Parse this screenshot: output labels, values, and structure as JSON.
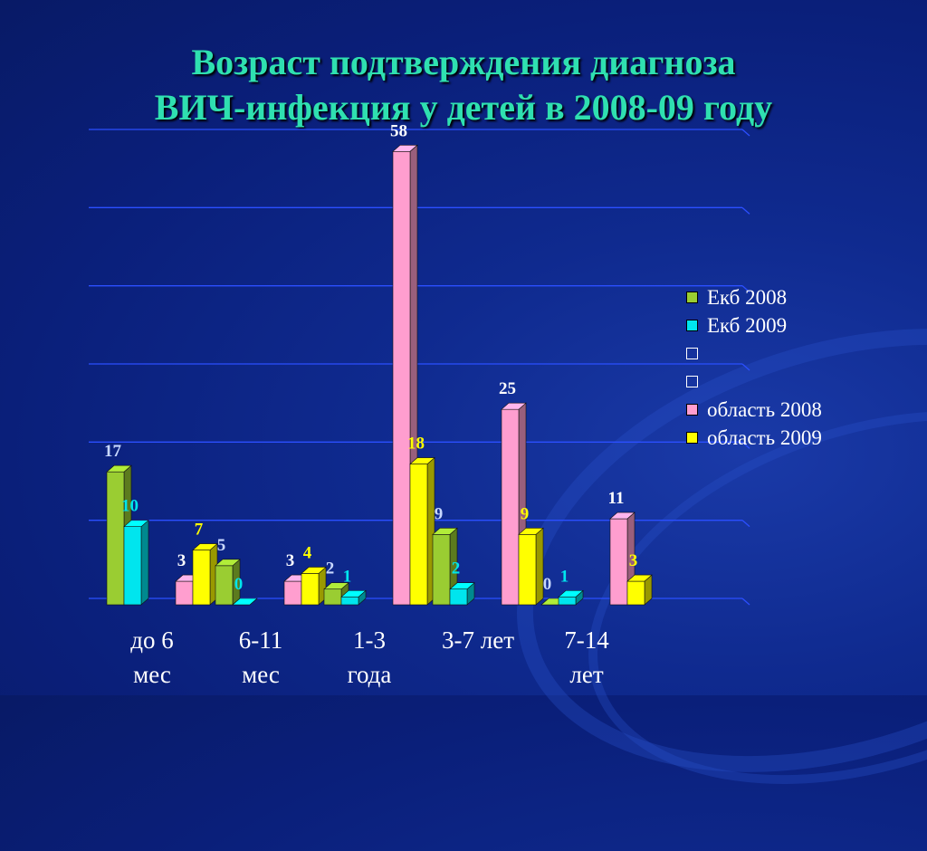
{
  "title": {
    "line1": "Возраст подтверждения диагноза",
    "line2": "ВИЧ-инфекция у детей в 2008-09 году"
  },
  "chart_data": {
    "type": "bar",
    "categories": [
      [
        "до 6",
        "мес"
      ],
      [
        "6-11",
        "мес"
      ],
      [
        "1-3",
        "года"
      ],
      [
        "3-7 лет"
      ],
      [
        "7-14",
        "лет"
      ]
    ],
    "series": [
      {
        "name": "Екб 2008",
        "values": [
          17,
          5,
          2,
          9,
          0
        ],
        "color": "#9acd32",
        "label_color": "#c8d8ff"
      },
      {
        "name": "Екб 2009",
        "values": [
          10,
          0,
          1,
          2,
          1
        ],
        "color": "#00e5ee",
        "label_color": "#00e5ee"
      },
      {
        "name": "",
        "values": [
          null,
          null,
          null,
          null,
          null
        ],
        "color": "#0a1f7a",
        "label_color": "#ffffff"
      },
      {
        "name": "",
        "values": [
          null,
          null,
          null,
          null,
          null
        ],
        "color": "#0a1f7a",
        "label_color": "#ffffff"
      },
      {
        "name": "область 2008",
        "values": [
          3,
          3,
          58,
          25,
          11
        ],
        "color": "#ff9ecf",
        "label_color": "#ffffff"
      },
      {
        "name": "область 2009",
        "values": [
          7,
          4,
          18,
          9,
          3
        ],
        "color": "#ffff00",
        "label_color": "#ffff00"
      }
    ],
    "ylim": [
      0,
      60
    ],
    "grid": true,
    "legend_position": "right",
    "title": "Возраст подтверждения диагноза ВИЧ-инфекция у детей в 2008-09 году"
  }
}
